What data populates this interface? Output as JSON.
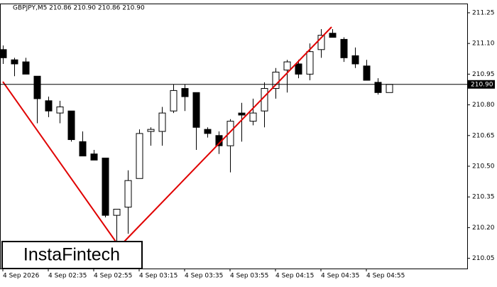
{
  "chart_data": {
    "type": "candlestick",
    "title": "GBPJPY,M5  210.86 210.90 210.86 210.90",
    "categories": [
      "4 Sep 2026",
      null,
      null,
      null,
      "4 Sep 02:35",
      null,
      null,
      null,
      "4 Sep 02:55",
      null,
      null,
      null,
      "4 Sep 03:15",
      null,
      null,
      null,
      "4 Sep 03:35",
      null,
      null,
      null,
      "4 Sep 03:55",
      null,
      null,
      null,
      "4 Sep 04:15",
      null,
      null,
      null,
      "4 Sep 04:35",
      null,
      null,
      null,
      "4 Sep 04:55",
      null,
      null
    ],
    "open": [
      211.07,
      211.02,
      211.01,
      210.94,
      210.82,
      210.76,
      210.77,
      210.62,
      210.56,
      210.54,
      210.26,
      210.3,
      210.44,
      210.67,
      210.67,
      210.77,
      210.88,
      210.86,
      210.68,
      210.65,
      210.6,
      210.76,
      210.72,
      210.77,
      210.88,
      210.97,
      211.0,
      210.95,
      211.07,
      211.15,
      211.12,
      211.04,
      210.99,
      210.91,
      210.86
    ],
    "high": [
      211.09,
      211.03,
      211.03,
      210.94,
      210.84,
      210.82,
      210.77,
      210.67,
      210.58,
      210.54,
      210.29,
      210.48,
      210.68,
      210.69,
      210.79,
      210.9,
      210.9,
      210.86,
      210.69,
      210.67,
      210.73,
      210.81,
      210.83,
      210.91,
      210.98,
      211.02,
      211.02,
      211.1,
      211.17,
      211.17,
      211.13,
      211.08,
      211.02,
      210.93,
      210.9
    ],
    "low": [
      211.0,
      210.94,
      210.95,
      210.71,
      210.74,
      210.71,
      210.62,
      210.55,
      210.53,
      210.25,
      210.13,
      210.17,
      210.44,
      210.6,
      210.6,
      210.76,
      210.77,
      210.58,
      210.64,
      210.56,
      210.47,
      210.62,
      210.7,
      210.69,
      210.83,
      210.86,
      210.93,
      210.92,
      211.03,
      211.13,
      211.01,
      210.98,
      210.92,
      210.85,
      210.86
    ],
    "close": [
      211.03,
      211.0,
      210.95,
      210.83,
      210.77,
      210.79,
      210.63,
      210.55,
      210.53,
      210.26,
      210.29,
      210.43,
      210.66,
      210.68,
      210.76,
      210.87,
      210.84,
      210.69,
      210.66,
      210.6,
      210.72,
      210.75,
      210.76,
      210.88,
      210.96,
      211.01,
      210.95,
      211.06,
      211.14,
      211.13,
      211.03,
      211.0,
      210.92,
      210.86,
      210.9
    ],
    "up_color": "#ffffff",
    "down_color": "#000000",
    "ylim": [
      210.0,
      211.295
    ],
    "yticks": [
      211.25,
      {
        "value": 211.1,
        "label": "211.10"
      },
      210.95,
      {
        "value": 210.8,
        "label": "210.80"
      },
      210.65,
      {
        "value": 210.5,
        "label": "210.50"
      },
      210.35,
      {
        "value": 210.2,
        "label": "210.20"
      },
      210.05
    ],
    "current_price": {
      "value": 210.9,
      "label": "210.90"
    },
    "watermark": "InstaFintech"
  }
}
